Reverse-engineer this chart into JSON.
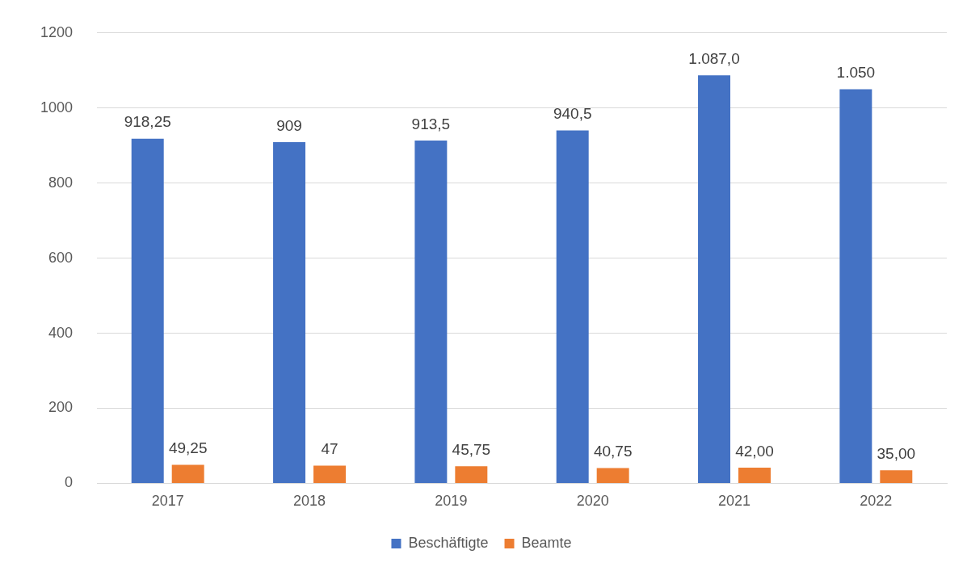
{
  "chart_data": {
    "type": "bar",
    "categories": [
      "2017",
      "2018",
      "2019",
      "2020",
      "2021",
      "2022"
    ],
    "series": [
      {
        "name": "Beschäftigte",
        "color": "#4472c4",
        "values": [
          918.25,
          909,
          913.5,
          940.5,
          1087,
          1050
        ],
        "value_labels": [
          "918,25",
          "909",
          "913,5",
          "940,5",
          "1.087,0",
          "1.050"
        ]
      },
      {
        "name": "Beamte",
        "color": "#ed7d31",
        "values": [
          49.25,
          47,
          45.75,
          40.75,
          42,
          35
        ],
        "value_labels": [
          "49,25",
          "47",
          "45,75",
          "40,75",
          "42,00",
          "35,00"
        ]
      }
    ],
    "ylim": [
      0,
      1200
    ],
    "yticks": [
      0,
      200,
      400,
      600,
      800,
      1000,
      1200
    ],
    "grid": "y",
    "legend": "bottom"
  }
}
